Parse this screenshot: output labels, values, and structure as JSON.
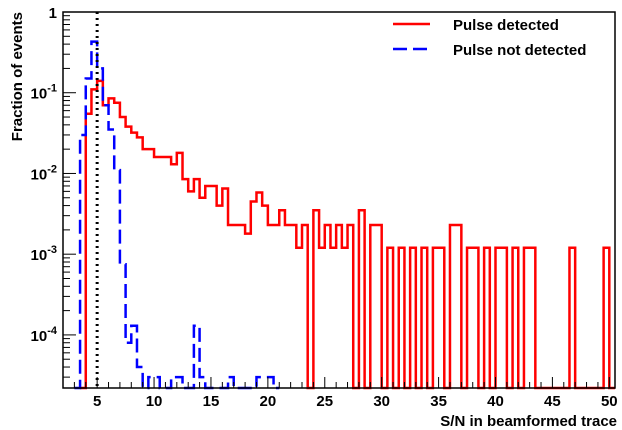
{
  "chart_data": {
    "type": "line",
    "subtype": "step-histogram",
    "xlabel": "S/N in beamformed trace",
    "ylabel": "Fraction of events",
    "xlim": [
      2,
      50.5
    ],
    "ylim": [
      2.2e-05,
      1
    ],
    "y_scale": "log",
    "x_ticks": [
      5,
      10,
      15,
      20,
      25,
      30,
      35,
      40,
      45,
      50
    ],
    "y_ticks": [
      {
        "value": 1,
        "mantissa": "1",
        "exponent": ""
      },
      {
        "value": 0.1,
        "mantissa": "10",
        "exponent": "-1"
      },
      {
        "value": 0.01,
        "mantissa": "10",
        "exponent": "-2"
      },
      {
        "value": 0.001,
        "mantissa": "10",
        "exponent": "-3"
      },
      {
        "value": 0.0001,
        "mantissa": "10",
        "exponent": "-4"
      }
    ],
    "threshold_line": {
      "x": 5,
      "style": "dotted",
      "color": "#000000"
    },
    "legend_position": "top-right",
    "grid": false,
    "series": [
      {
        "name": "Pulse detected",
        "color": "#ff0000",
        "style": "solid",
        "bins": [
          [
            3.5,
            4.0,
            1e-05
          ],
          [
            4.0,
            4.5,
            0.055
          ],
          [
            4.5,
            5.0,
            0.11
          ],
          [
            5.0,
            5.5,
            0.14
          ],
          [
            5.5,
            6.0,
            0.07
          ],
          [
            6.0,
            6.5,
            0.085
          ],
          [
            6.5,
            7.0,
            0.075
          ],
          [
            7.0,
            7.5,
            0.05
          ],
          [
            7.5,
            8.0,
            0.038
          ],
          [
            8.0,
            8.5,
            0.032
          ],
          [
            8.5,
            9.0,
            0.028
          ],
          [
            9.0,
            9.5,
            0.02
          ],
          [
            9.5,
            10.0,
            0.02
          ],
          [
            10.0,
            10.5,
            0.016
          ],
          [
            10.5,
            11.0,
            0.016
          ],
          [
            11.0,
            11.5,
            0.016
          ],
          [
            11.5,
            12.0,
            0.013
          ],
          [
            12.0,
            12.5,
            0.018
          ],
          [
            12.5,
            13.0,
            0.0085
          ],
          [
            13.0,
            13.5,
            0.006
          ],
          [
            13.5,
            14.0,
            0.0085
          ],
          [
            14.0,
            14.5,
            0.005
          ],
          [
            14.5,
            15.0,
            0.007
          ],
          [
            15.0,
            15.5,
            0.007
          ],
          [
            15.5,
            16.0,
            0.004
          ],
          [
            16.0,
            16.5,
            0.0065
          ],
          [
            16.5,
            17.0,
            0.0023
          ],
          [
            17.0,
            17.5,
            0.0023
          ],
          [
            17.5,
            18.0,
            0.0023
          ],
          [
            18.0,
            18.5,
            0.0018
          ],
          [
            18.5,
            19.0,
            0.0045
          ],
          [
            19.0,
            19.5,
            0.0058
          ],
          [
            19.5,
            20.0,
            0.004
          ],
          [
            20.0,
            20.5,
            0.0023
          ],
          [
            20.5,
            21.0,
            0.0023
          ],
          [
            21.0,
            21.5,
            0.0035
          ],
          [
            21.5,
            22.0,
            0.0023
          ],
          [
            22.0,
            22.5,
            0.0023
          ],
          [
            22.5,
            23.0,
            0.0012
          ],
          [
            23.0,
            23.5,
            0.0023
          ],
          [
            23.5,
            24.0,
            1e-05
          ],
          [
            24.0,
            24.5,
            0.0035
          ],
          [
            24.5,
            25.0,
            0.0012
          ],
          [
            25.0,
            25.5,
            0.0023
          ],
          [
            25.5,
            26.0,
            0.0012
          ],
          [
            26.0,
            26.5,
            0.0023
          ],
          [
            26.5,
            27.0,
            0.0012
          ],
          [
            27.0,
            27.5,
            0.0023
          ],
          [
            27.5,
            28.0,
            1e-05
          ],
          [
            28.0,
            28.5,
            0.0035
          ],
          [
            28.5,
            29.0,
            1e-05
          ],
          [
            29.0,
            29.5,
            0.0023
          ],
          [
            29.5,
            30.0,
            0.0023
          ],
          [
            30.0,
            30.5,
            1e-05
          ],
          [
            30.5,
            31.0,
            0.0012
          ],
          [
            31.0,
            31.5,
            1e-05
          ],
          [
            31.5,
            32.0,
            0.0012
          ],
          [
            32.0,
            32.5,
            1e-05
          ],
          [
            32.5,
            33.0,
            0.0012
          ],
          [
            33.0,
            33.5,
            1e-05
          ],
          [
            33.5,
            34.0,
            0.0012
          ],
          [
            34.0,
            34.5,
            1e-05
          ],
          [
            34.5,
            35.0,
            0.0012
          ],
          [
            35.0,
            35.5,
            0.0012
          ],
          [
            35.5,
            36.0,
            1e-05
          ],
          [
            36.0,
            36.5,
            0.0023
          ],
          [
            36.5,
            37.0,
            0.0023
          ],
          [
            37.0,
            37.5,
            1e-05
          ],
          [
            37.5,
            38.0,
            0.0012
          ],
          [
            38.0,
            38.5,
            0.0012
          ],
          [
            38.5,
            39.0,
            1e-05
          ],
          [
            39.0,
            39.5,
            0.0012
          ],
          [
            39.5,
            40.0,
            1e-05
          ],
          [
            40.0,
            40.5,
            0.0012
          ],
          [
            40.5,
            41.0,
            0.0012
          ],
          [
            41.0,
            41.5,
            1e-05
          ],
          [
            41.5,
            42.0,
            0.0012
          ],
          [
            42.0,
            42.5,
            1e-05
          ],
          [
            42.5,
            43.0,
            0.0012
          ],
          [
            43.0,
            43.5,
            0.0012
          ],
          [
            43.5,
            44.0,
            1e-05
          ],
          [
            44.0,
            44.5,
            1e-05
          ],
          [
            44.5,
            45.0,
            1e-05
          ],
          [
            45.0,
            45.5,
            1e-05
          ],
          [
            45.5,
            46.0,
            1e-05
          ],
          [
            46.0,
            46.5,
            1e-05
          ],
          [
            46.5,
            47.0,
            0.0012
          ],
          [
            47.0,
            47.5,
            1e-05
          ],
          [
            47.5,
            48.0,
            1e-05
          ],
          [
            48.0,
            48.5,
            1e-05
          ],
          [
            48.5,
            49.0,
            1e-05
          ],
          [
            49.0,
            49.5,
            1e-05
          ],
          [
            49.5,
            50.0,
            0.0012
          ],
          [
            50.0,
            50.5,
            1e-05
          ]
        ]
      },
      {
        "name": "Pulse not detected",
        "color": "#0000ff",
        "style": "dashed",
        "bins": [
          [
            3.0,
            3.5,
            1e-05
          ],
          [
            3.5,
            4.0,
            0.03
          ],
          [
            4.0,
            4.5,
            0.15
          ],
          [
            4.5,
            5.0,
            0.43
          ],
          [
            5.0,
            5.5,
            0.2
          ],
          [
            5.5,
            6.0,
            0.07
          ],
          [
            6.0,
            6.5,
            0.035
          ],
          [
            6.5,
            7.0,
            0.011
          ],
          [
            7.0,
            7.5,
            0.00075
          ],
          [
            7.5,
            8.0,
            8e-05
          ],
          [
            8.0,
            8.5,
            0.00013
          ],
          [
            8.5,
            9.0,
            4e-05
          ],
          [
            9.0,
            9.5,
            1e-05
          ],
          [
            9.5,
            10.0,
            3e-05
          ],
          [
            10.0,
            10.5,
            3e-05
          ],
          [
            10.5,
            11.0,
            1e-05
          ],
          [
            11.0,
            11.5,
            1e-05
          ],
          [
            11.5,
            12.0,
            3e-05
          ],
          [
            12.0,
            12.5,
            3e-05
          ],
          [
            12.5,
            13.0,
            1e-05
          ],
          [
            13.0,
            13.5,
            1e-05
          ],
          [
            13.5,
            14.0,
            0.00013
          ],
          [
            14.0,
            14.5,
            3e-05
          ],
          [
            14.5,
            15.0,
            1e-05
          ],
          [
            15.0,
            15.5,
            1e-05
          ],
          [
            15.5,
            16.0,
            1e-05
          ],
          [
            16.0,
            16.5,
            1e-05
          ],
          [
            16.5,
            17.0,
            3e-05
          ],
          [
            17.0,
            17.5,
            1e-05
          ],
          [
            17.5,
            18.0,
            1e-05
          ],
          [
            18.0,
            18.5,
            1e-05
          ],
          [
            18.5,
            19.0,
            1e-05
          ],
          [
            19.0,
            19.5,
            3e-05
          ],
          [
            19.5,
            20.0,
            3e-05
          ],
          [
            20.0,
            20.5,
            3e-05
          ],
          [
            20.5,
            21.0,
            1e-05
          ]
        ]
      }
    ]
  }
}
